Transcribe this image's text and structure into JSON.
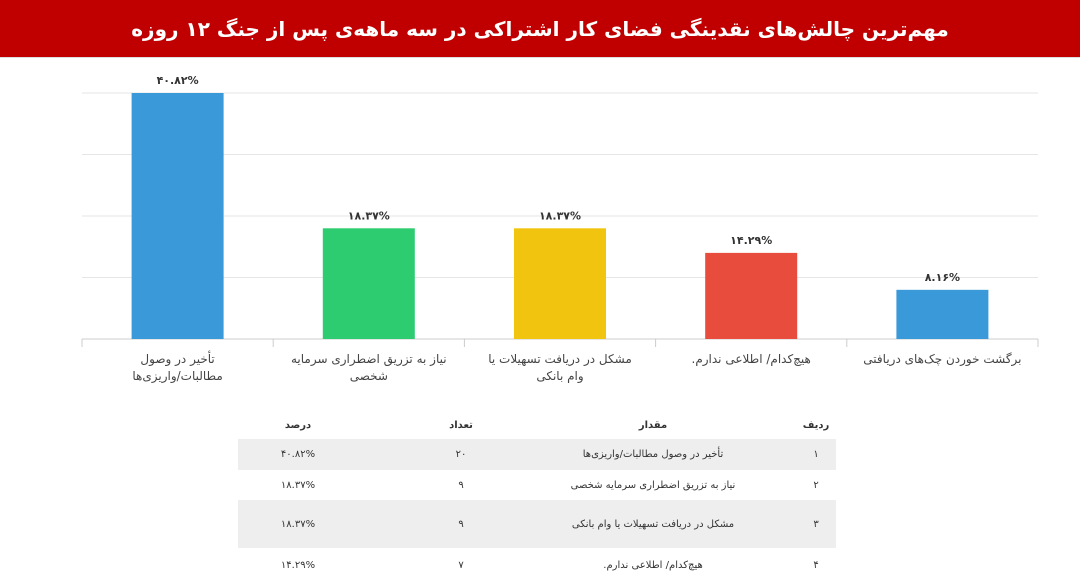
{
  "header": {
    "title": "مهم‌ترین چالش‌های نقدینگی فضای کار اشتراکی در سه ماهه‌ی پس از جنگ ۱۲ روزه",
    "background": "#c00000"
  },
  "chart_data": {
    "type": "bar",
    "categories": [
      "تأخیر در وصول مطالبات/واریزی‌ها",
      "نیاز به تزریق اضطراری سرمایه شخصی",
      "مشکل در دریافت تسهیلات یا وام بانکی",
      "هیچ‌کدام/ اطلاعی ندارم.",
      "برگشت خوردن چک‌های دریافتی"
    ],
    "values": [
      40.82,
      18.37,
      18.37,
      14.29,
      8.16
    ],
    "data_labels": [
      "۴۰.۸۲%",
      "۱۸.۳۷%",
      "۱۸.۳۷%",
      "۱۴.۲۹%",
      "۸.۱۶%"
    ],
    "colors": [
      "#3a9ad9",
      "#2ecc71",
      "#f1c40f",
      "#e74c3c",
      "#3a9ad9"
    ],
    "ylim": [
      0,
      40.82
    ],
    "grid": true,
    "title": "",
    "xlabel": "",
    "ylabel": ""
  },
  "table": {
    "headers": {
      "index": "ردیف",
      "label": "مقدار",
      "count": "تعداد",
      "percent": "درصد"
    },
    "rows": [
      {
        "index": "۱",
        "label": "تأخیر در وصول مطالبات/واریزی‌ها",
        "count": "۲۰",
        "percent": "۴۰.۸۲%"
      },
      {
        "index": "۲",
        "label": "نیاز به تزریق اضطراری سرمایه شخصی",
        "count": "۹",
        "percent": "۱۸.۳۷%"
      },
      {
        "index": "۳",
        "label": "مشکل در دریافت تسهیلات یا وام بانکی",
        "count": "۹",
        "percent": "۱۸.۳۷%"
      },
      {
        "index": "۴",
        "label": "هیچ‌کدام/ اطلاعی ندارم.",
        "count": "۷",
        "percent": "۱۴.۲۹%"
      }
    ]
  }
}
